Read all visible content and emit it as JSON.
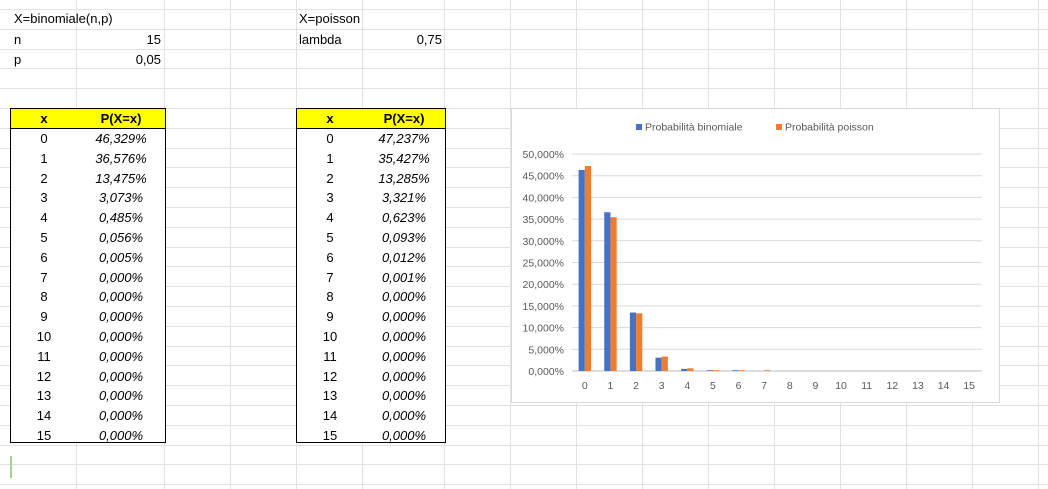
{
  "binomial_params": {
    "title": "X=binomiale(n,p)",
    "n_label": "n",
    "n_value": "15",
    "p_label": "p",
    "p_value": "0,05"
  },
  "poisson_params": {
    "title": "X=poisson",
    "lambda_label": "lambda",
    "lambda_value": "0,75"
  },
  "binomial_table": {
    "header_x": "x",
    "header_p": "P(X=x)",
    "rows": [
      {
        "x": "0",
        "p": "46,329%"
      },
      {
        "x": "1",
        "p": "36,576%"
      },
      {
        "x": "2",
        "p": "13,475%"
      },
      {
        "x": "3",
        "p": "3,073%"
      },
      {
        "x": "4",
        "p": "0,485%"
      },
      {
        "x": "5",
        "p": "0,056%"
      },
      {
        "x": "6",
        "p": "0,005%"
      },
      {
        "x": "7",
        "p": "0,000%"
      },
      {
        "x": "8",
        "p": "0,000%"
      },
      {
        "x": "9",
        "p": "0,000%"
      },
      {
        "x": "10",
        "p": "0,000%"
      },
      {
        "x": "11",
        "p": "0,000%"
      },
      {
        "x": "12",
        "p": "0,000%"
      },
      {
        "x": "13",
        "p": "0,000%"
      },
      {
        "x": "14",
        "p": "0,000%"
      },
      {
        "x": "15",
        "p": "0,000%"
      }
    ]
  },
  "poisson_table": {
    "header_x": "x",
    "header_p": "P(X=x)",
    "rows": [
      {
        "x": "0",
        "p": "47,237%"
      },
      {
        "x": "1",
        "p": "35,427%"
      },
      {
        "x": "2",
        "p": "13,285%"
      },
      {
        "x": "3",
        "p": "3,321%"
      },
      {
        "x": "4",
        "p": "0,623%"
      },
      {
        "x": "5",
        "p": "0,093%"
      },
      {
        "x": "6",
        "p": "0,012%"
      },
      {
        "x": "7",
        "p": "0,001%"
      },
      {
        "x": "8",
        "p": "0,000%"
      },
      {
        "x": "9",
        "p": "0,000%"
      },
      {
        "x": "10",
        "p": "0,000%"
      },
      {
        "x": "11",
        "p": "0,000%"
      },
      {
        "x": "12",
        "p": "0,000%"
      },
      {
        "x": "13",
        "p": "0,000%"
      },
      {
        "x": "14",
        "p": "0,000%"
      },
      {
        "x": "15",
        "p": "0,000%"
      }
    ]
  },
  "chart_data": {
    "type": "bar",
    "title": "",
    "xlabel": "",
    "ylabel": "",
    "categories": [
      "0",
      "1",
      "2",
      "3",
      "4",
      "5",
      "6",
      "7",
      "8",
      "9",
      "10",
      "11",
      "12",
      "13",
      "14",
      "15"
    ],
    "series": [
      {
        "name": "Probabilità binomiale",
        "color": "#4472c4",
        "values": [
          46.329,
          36.576,
          13.475,
          3.073,
          0.485,
          0.056,
          0.005,
          0.0,
          0.0,
          0.0,
          0.0,
          0.0,
          0.0,
          0.0,
          0.0,
          0.0
        ]
      },
      {
        "name": "Probabilità poisson",
        "color": "#ed7d31",
        "values": [
          47.237,
          35.427,
          13.285,
          3.321,
          0.623,
          0.093,
          0.012,
          0.001,
          0.0,
          0.0,
          0.0,
          0.0,
          0.0,
          0.0,
          0.0,
          0.0
        ]
      }
    ],
    "ylim": [
      0,
      50
    ],
    "y_ticks": [
      "0,000%",
      "5,000%",
      "10,000%",
      "15,000%",
      "20,000%",
      "25,000%",
      "30,000%",
      "35,000%",
      "40,000%",
      "45,000%",
      "50,000%"
    ],
    "legend_position": "top",
    "grid": true
  }
}
